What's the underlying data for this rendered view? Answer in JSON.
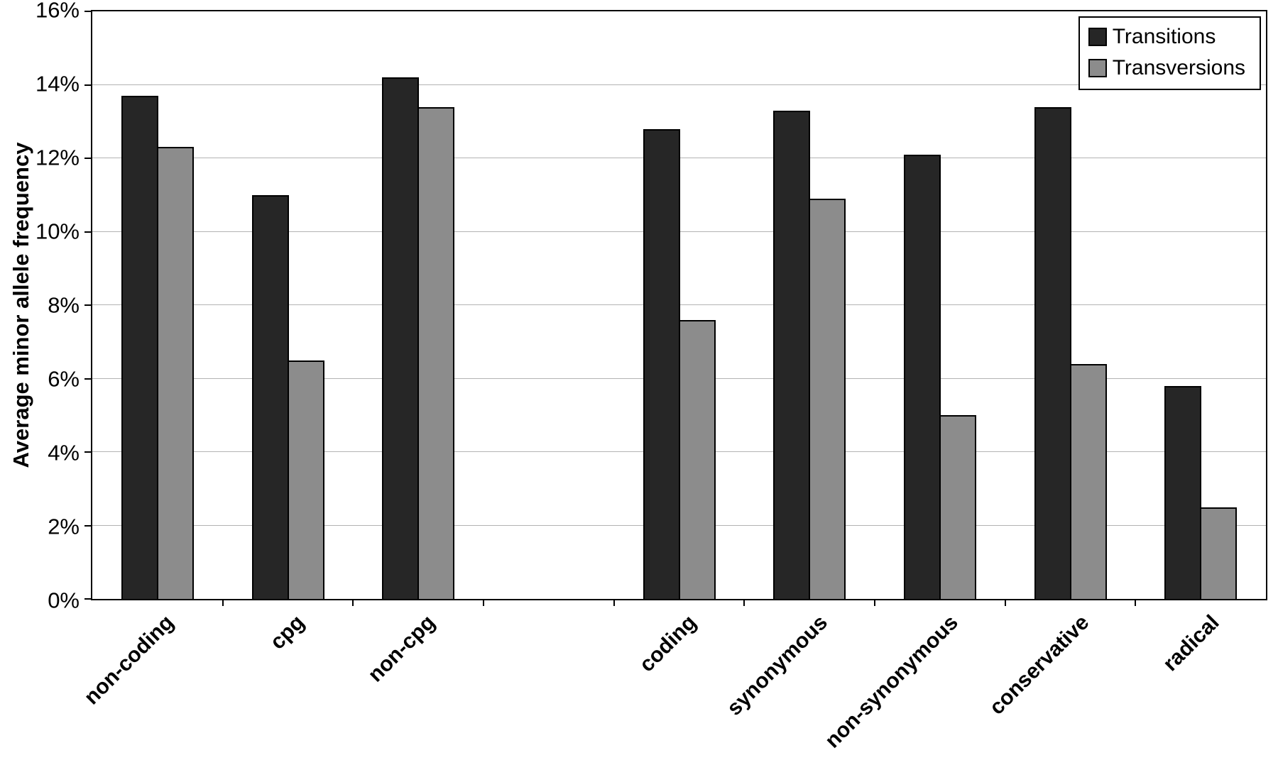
{
  "chart_data": {
    "type": "bar",
    "title": "",
    "xlabel": "",
    "ylabel": "Average minor allele frequency",
    "ylim": [
      0,
      16
    ],
    "ytick_step": 2,
    "ytick_suffix": "%",
    "grid": true,
    "legend_position": "top-right",
    "categories": [
      "non-coding",
      "cpg",
      "non-cpg",
      "",
      "coding",
      "synonymous",
      "non-synonymous",
      "conservative",
      "radical"
    ],
    "series": [
      {
        "name": "Transitions",
        "color": "#262626",
        "values": [
          13.7,
          11.0,
          14.2,
          null,
          12.8,
          13.3,
          12.1,
          13.4,
          5.8
        ]
      },
      {
        "name": "Transversions",
        "color": "#8c8c8c",
        "values": [
          12.3,
          6.5,
          13.4,
          null,
          7.6,
          10.9,
          5.0,
          6.4,
          2.5
        ]
      }
    ]
  },
  "colors": {
    "axis": "#000000",
    "gridline": "#b3b3b3",
    "background": "#ffffff"
  }
}
